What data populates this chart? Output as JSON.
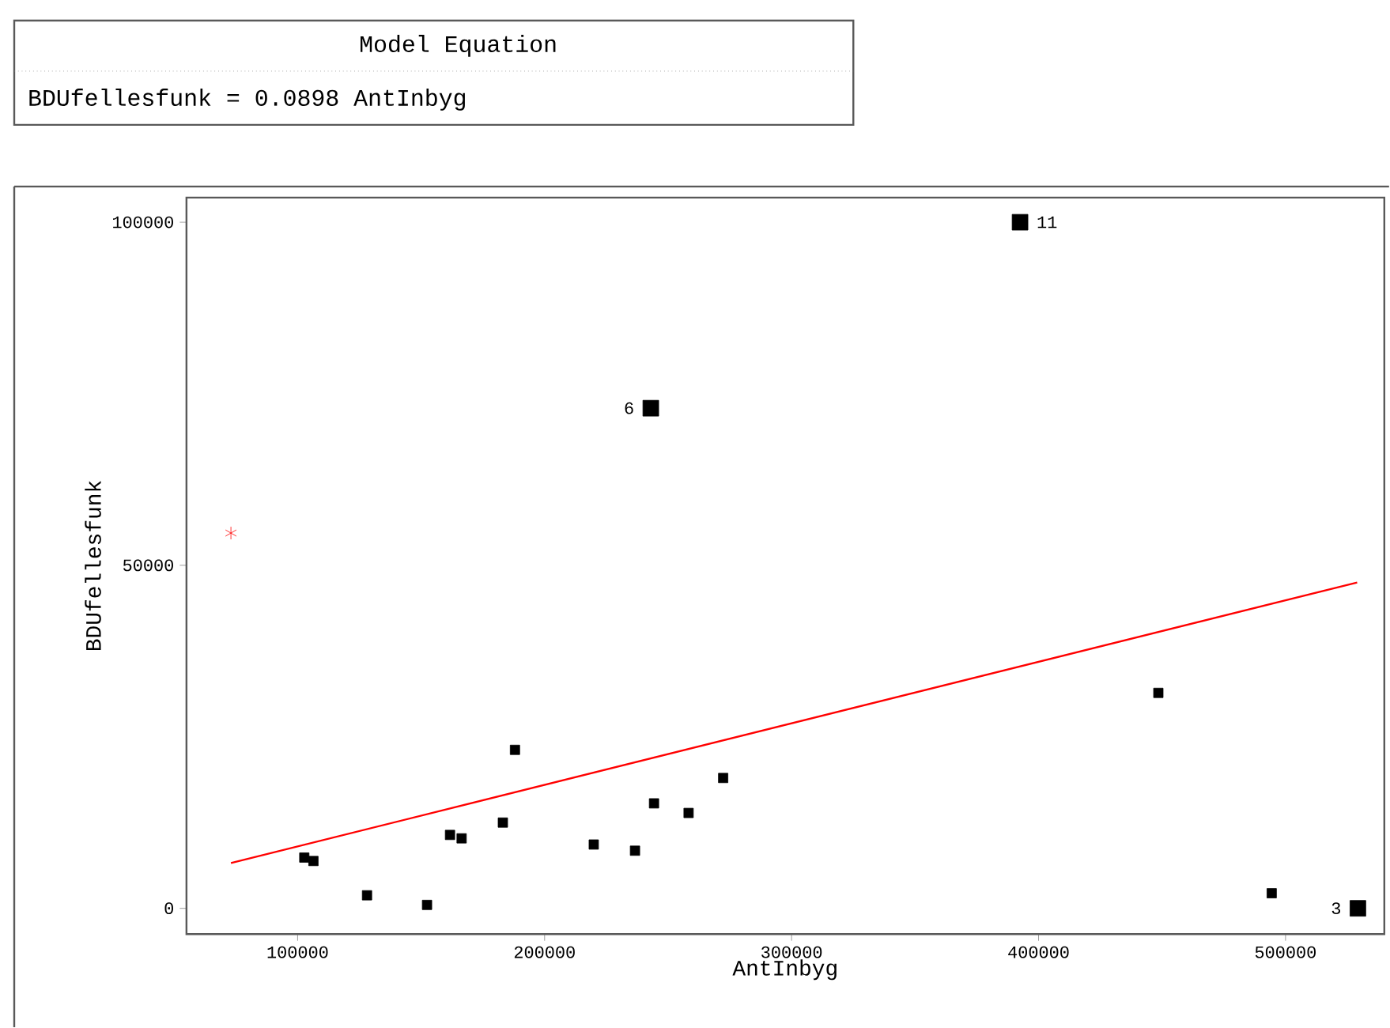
{
  "chart_data": {
    "type": "scatter",
    "title": "Model Equation",
    "xlabel": "AntInbyg",
    "ylabel": "BDUfellesfunk",
    "annotations": [
      "BDUfellesfunk   =     0.0898  AntInbyg",
      {
        "text": "6",
        "x": 243000,
        "y": 72900
      },
      {
        "text": "11",
        "x": 392500,
        "y": 100000
      },
      {
        "text": "3",
        "x": 529300,
        "y": 0
      }
    ],
    "xlim": [
      55000,
      540000
    ],
    "ylim": [
      -3750,
      103600
    ],
    "xticks": [
      100000,
      200000,
      300000,
      400000,
      500000
    ],
    "yticks": [
      0,
      50000,
      100000
    ],
    "series": [
      {
        "color": "#000000",
        "marker": "square",
        "x": [
          102700,
          106400,
          128100,
          152400,
          161700,
          166400,
          183100,
          188000,
          219900,
          236600,
          244300,
          258300,
          272300,
          448500,
          494400
        ],
        "values": [
          7400,
          6900,
          1900,
          500,
          10700,
          10200,
          12500,
          23100,
          9300,
          8400,
          15300,
          13900,
          19000,
          31400,
          2200
        ]
      },
      {
        "color": "#000000",
        "marker": "square",
        "x": [
          243000,
          392500,
          529300
        ],
        "values": [
          72900,
          100000,
          0
        ]
      },
      {
        "color": "#ff0000",
        "marker": "cross",
        "x": [
          73000
        ],
        "values": [
          54700
        ]
      },
      {
        "type": "line",
        "color": "#ff0000",
        "marker": "none",
        "line_style": "solid",
        "x": [
          73000,
          529000
        ],
        "values": [
          6600,
          47500
        ]
      }
    ]
  }
}
